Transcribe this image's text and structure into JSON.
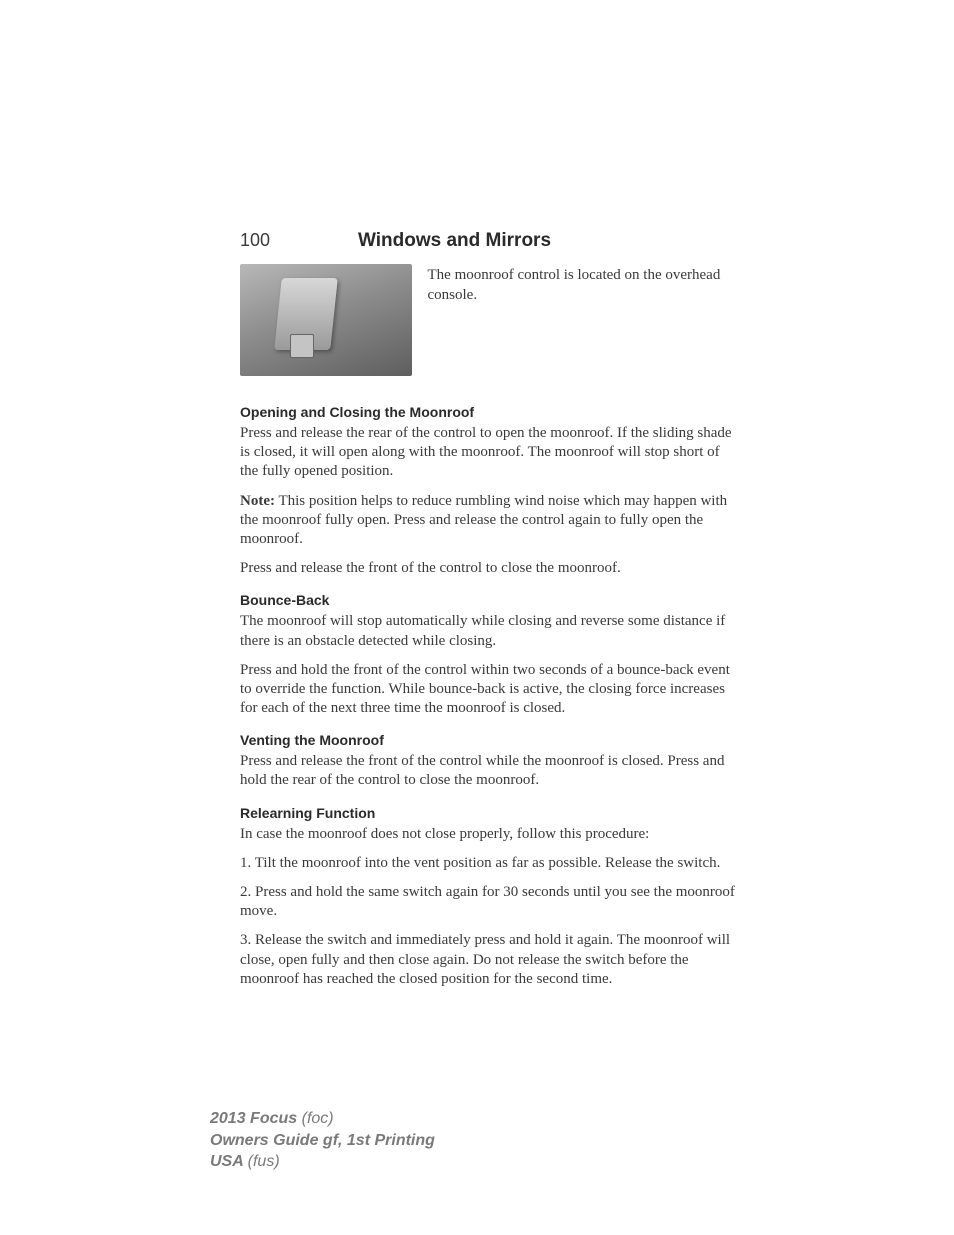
{
  "header": {
    "page_number": "100",
    "chapter_title": "Windows and Mirrors"
  },
  "figure": {
    "alt": "moonroof-control-overhead-console",
    "caption": "The moonroof control is located on the overhead console."
  },
  "sections": {
    "opening": {
      "title": "Opening and Closing the Moonroof",
      "p1": "Press and release the rear of the control to open the moonroof. If the sliding shade is closed, it will open along with the moonroof. The moonroof will stop short of the fully opened position.",
      "note_label": "Note:",
      "note_text": " This position helps to reduce rumbling wind noise which may happen with the moonroof fully open. Press and release the control again to fully open the moonroof.",
      "p3": "Press and release the front of the control to close the moonroof."
    },
    "bounce": {
      "title": "Bounce-Back",
      "p1": "The moonroof will stop automatically while closing and reverse some distance if there is an obstacle detected while closing.",
      "p2": "Press and hold the front of the control within two seconds of a bounce-back event to override the function. While bounce-back is active, the closing force increases for each of the next three time the moonroof is closed."
    },
    "venting": {
      "title": "Venting the Moonroof",
      "p1": "Press and release the front of the control while the moonroof is closed. Press and hold the rear of the control to close the moonroof."
    },
    "relearn": {
      "title": "Relearning Function",
      "p1": "In case the moonroof does not close properly, follow this procedure:",
      "step1": "1. Tilt the moonroof into the vent position as far as possible. Release the switch.",
      "step2": "2. Press and hold the same switch again for 30 seconds until you see the moonroof move.",
      "step3": "3. Release the switch and immediately press and hold it again. The moonroof will close, open fully and then close again. Do not release the switch before the moonroof has reached the closed position for the second time."
    }
  },
  "footer": {
    "line1_bold": "2013 Focus ",
    "line1_light": "(foc)",
    "line2": "Owners Guide gf, 1st Printing",
    "line3_bold": "USA ",
    "line3_light": "(fus)"
  }
}
